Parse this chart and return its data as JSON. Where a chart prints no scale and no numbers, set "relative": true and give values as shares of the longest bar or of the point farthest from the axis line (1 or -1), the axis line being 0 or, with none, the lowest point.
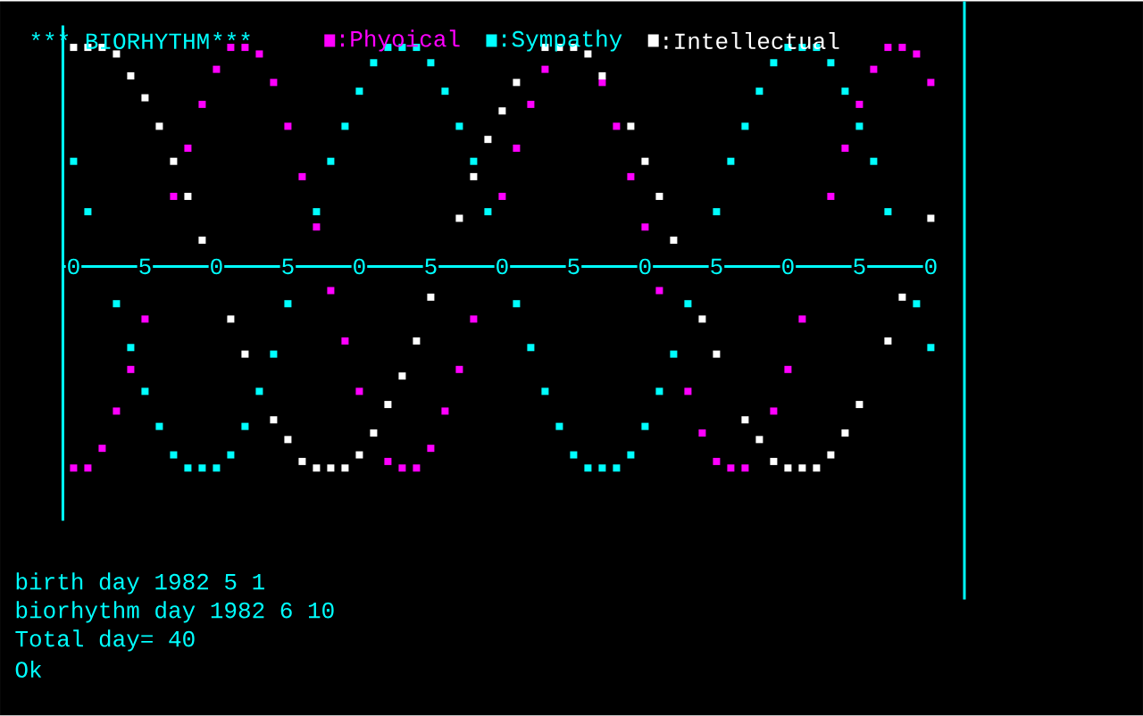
{
  "chart_data": {
    "type": "scatter",
    "title": "*** BIORHYTHM",
    "subtitle": "***",
    "relative": true,
    "marker": "square",
    "legend": "top",
    "grid": false,
    "categories": [
      "0",
      null,
      null,
      null,
      null,
      "5",
      null,
      null,
      null,
      null,
      "0",
      null,
      null,
      null,
      null,
      "5",
      null,
      null,
      null,
      null,
      "0",
      null,
      null,
      null,
      null,
      "5",
      null,
      null,
      null,
      null,
      "0",
      null,
      null,
      null,
      null,
      "5",
      null,
      null,
      null,
      null,
      "0",
      null,
      null,
      null,
      null,
      "5",
      null,
      null,
      null,
      null,
      "0",
      null,
      null,
      null,
      null,
      "5",
      null,
      null,
      null,
      null,
      "0"
    ],
    "series": [
      {
        "name": ":Phyoical",
        "color": "#ff00ff",
        "values": [
          -0.92,
          -0.92,
          -0.83,
          -0.66,
          -0.47,
          -0.24,
          null,
          0.32,
          0.54,
          0.74,
          0.9,
          1,
          1,
          0.97,
          0.84,
          0.64,
          0.41,
          0.18,
          -0.11,
          -0.34,
          -0.57,
          null,
          -0.89,
          -0.92,
          -0.92,
          -0.83,
          -0.66,
          -0.47,
          -0.24,
          null,
          0.32,
          0.54,
          0.74,
          0.9,
          null,
          null,
          null,
          0.84,
          0.64,
          0.41,
          0.18,
          -0.11,
          null,
          -0.57,
          -0.76,
          -0.89,
          -0.92,
          -0.92,
          null,
          -0.66,
          -0.47,
          -0.24,
          null,
          0.32,
          0.54,
          0.74,
          0.9,
          1,
          1,
          0.97,
          0.84
        ]
      },
      {
        "name": ":Sympathy",
        "color": "#00ffff",
        "values": [
          0.48,
          0.25,
          null,
          -0.17,
          -0.37,
          -0.57,
          -0.73,
          -0.86,
          -0.92,
          -0.92,
          -0.92,
          -0.86,
          -0.73,
          -0.57,
          -0.4,
          -0.17,
          null,
          0.25,
          0.48,
          0.64,
          0.8,
          0.93,
          1,
          1,
          1,
          0.93,
          0.8,
          0.64,
          0.48,
          0.25,
          null,
          -0.17,
          -0.37,
          -0.57,
          -0.73,
          -0.86,
          -0.92,
          -0.92,
          -0.92,
          -0.86,
          -0.73,
          -0.57,
          -0.4,
          -0.17,
          null,
          0.25,
          0.48,
          0.64,
          0.8,
          0.93,
          1,
          1,
          1,
          0.93,
          0.8,
          0.64,
          0.48,
          0.25,
          null,
          -0.17,
          -0.37
        ]
      },
      {
        "name": ":Intellectual",
        "color": "#ffffff",
        "values": [
          1,
          1,
          1,
          0.97,
          0.87,
          0.77,
          0.64,
          0.48,
          0.32,
          0.12,
          null,
          -0.24,
          -0.4,
          null,
          -0.7,
          -0.79,
          -0.89,
          -0.92,
          -0.92,
          -0.92,
          -0.86,
          -0.76,
          -0.63,
          -0.5,
          -0.34,
          -0.14,
          null,
          0.22,
          0.41,
          0.58,
          0.71,
          0.84,
          null,
          1,
          1,
          1,
          0.97,
          0.87,
          null,
          0.64,
          0.48,
          0.32,
          0.12,
          null,
          -0.24,
          -0.4,
          null,
          -0.7,
          -0.79,
          -0.89,
          -0.92,
          -0.92,
          -0.92,
          -0.86,
          -0.76,
          -0.63,
          null,
          -0.34,
          -0.14,
          null,
          0.22
        ]
      }
    ],
    "annotations": [
      "birth day 1982  5  1",
      "biorhythm day 1982  6  10",
      "Total day= 40",
      "Ok"
    ]
  }
}
